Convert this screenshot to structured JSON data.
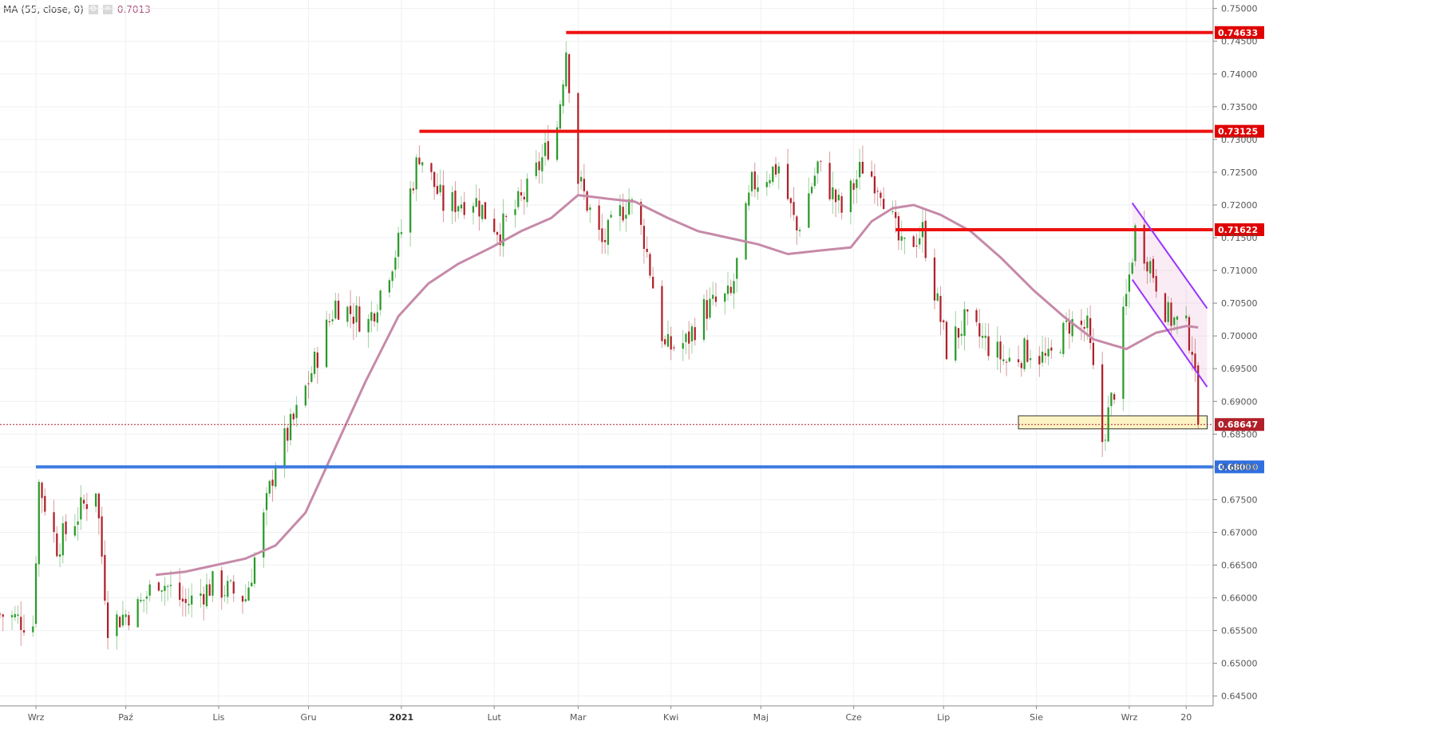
{
  "legend": {
    "indicator": "MA (55, close, 0)",
    "settings_icon": "gear-icon",
    "close_icon": "close-icon",
    "value": "0.7013"
  },
  "colors": {
    "up": "#2a9a2a",
    "down": "#b0202a",
    "ma": "#c68aa8",
    "resistance": "#ee1111",
    "support": "#3c7be0",
    "channel": "#9933ff",
    "zone_fill": "#fbf3c4",
    "grid": "#eef0f3",
    "price_line": "#b0202a"
  },
  "chart_data": {
    "type": "candlestick",
    "title": "",
    "xlabel": "",
    "ylabel": "",
    "ylim": [
      0.6435,
      0.7513
    ],
    "x_range": [
      "2020-08-20",
      "2021-09-29"
    ],
    "x_ticks": [
      {
        "date": "2020-09-01",
        "label": "Wrz"
      },
      {
        "date": "2020-10-01",
        "label": "Paź"
      },
      {
        "date": "2020-11-01",
        "label": "Lis"
      },
      {
        "date": "2020-12-01",
        "label": "Gru"
      },
      {
        "date": "2021-01-01",
        "label": "2021",
        "bold": true
      },
      {
        "date": "2021-02-01",
        "label": "Lut"
      },
      {
        "date": "2021-03-01",
        "label": "Mar"
      },
      {
        "date": "2021-04-01",
        "label": "Kwi"
      },
      {
        "date": "2021-05-01",
        "label": "Maj"
      },
      {
        "date": "2021-06-01",
        "label": "Cze"
      },
      {
        "date": "2021-07-01",
        "label": "Lip"
      },
      {
        "date": "2021-08-01",
        "label": "Sie"
      },
      {
        "date": "2021-09-01",
        "label": "Wrz"
      },
      {
        "date": "2021-09-20",
        "label": "20"
      }
    ],
    "y_ticks": [
      "0.75000",
      "0.74500",
      "0.74000",
      "0.73500",
      "0.73000",
      "0.72500",
      "0.72000",
      "0.71500",
      "0.71000",
      "0.70500",
      "0.70000",
      "0.69500",
      "0.69000",
      "0.68500",
      "0.68000",
      "0.67500",
      "0.67000",
      "0.66500",
      "0.66000",
      "0.65500",
      "0.65000",
      "0.64500"
    ],
    "price_anchors": [
      [
        "2020-08-20",
        0.6575
      ],
      [
        "2020-08-31",
        0.656
      ],
      [
        "2020-09-02",
        0.6775
      ],
      [
        "2020-09-08",
        0.668
      ],
      [
        "2020-09-14",
        0.672
      ],
      [
        "2020-09-21",
        0.677
      ],
      [
        "2020-09-25",
        0.656
      ],
      [
        "2020-10-05",
        0.6585
      ],
      [
        "2020-10-12",
        0.663
      ],
      [
        "2020-10-21",
        0.659
      ],
      [
        "2020-10-30",
        0.662
      ],
      [
        "2020-11-10",
        0.66
      ],
      [
        "2020-11-16",
        0.672
      ],
      [
        "2020-11-20",
        0.681
      ],
      [
        "2020-11-27",
        0.688
      ],
      [
        "2020-12-10",
        0.705
      ],
      [
        "2020-12-21",
        0.702
      ],
      [
        "2020-12-31",
        0.714
      ],
      [
        "2021-01-07",
        0.728
      ],
      [
        "2021-01-15",
        0.72
      ],
      [
        "2021-01-25",
        0.721
      ],
      [
        "2021-02-03",
        0.716
      ],
      [
        "2021-02-12",
        0.722
      ],
      [
        "2021-02-22",
        0.732
      ],
      [
        "2021-02-25",
        0.744
      ],
      [
        "2021-03-01",
        0.724
      ],
      [
        "2021-03-09",
        0.714
      ],
      [
        "2021-03-18",
        0.721
      ],
      [
        "2021-03-23",
        0.715
      ],
      [
        "2021-03-30",
        0.698
      ],
      [
        "2021-04-06",
        0.699
      ],
      [
        "2021-04-12",
        0.704
      ],
      [
        "2021-04-21",
        0.706
      ],
      [
        "2021-04-28",
        0.723
      ],
      [
        "2021-05-07",
        0.726
      ],
      [
        "2021-05-13",
        0.716
      ],
      [
        "2021-05-20",
        0.726
      ],
      [
        "2021-05-28",
        0.719
      ],
      [
        "2021-06-04",
        0.726
      ],
      [
        "2021-06-10",
        0.723
      ],
      [
        "2021-06-17",
        0.713
      ],
      [
        "2021-06-24",
        0.716
      ],
      [
        "2021-07-02",
        0.698
      ],
      [
        "2021-07-08",
        0.702
      ],
      [
        "2021-07-15",
        0.699
      ],
      [
        "2021-07-22",
        0.696
      ],
      [
        "2021-07-30",
        0.698
      ],
      [
        "2021-08-05",
        0.696
      ],
      [
        "2021-08-12",
        0.702
      ],
      [
        "2021-08-18",
        0.701
      ],
      [
        "2021-08-23",
        0.684
      ],
      [
        "2021-08-27",
        0.692
      ],
      [
        "2021-09-03",
        0.716
      ],
      [
        "2021-09-08",
        0.711
      ],
      [
        "2021-09-14",
        0.703
      ],
      [
        "2021-09-20",
        0.701
      ],
      [
        "2021-09-22",
        0.6985
      ],
      [
        "2021-09-24",
        0.6865
      ]
    ],
    "ma_55": [
      [
        "2020-10-11",
        0.6635
      ],
      [
        "2020-10-21",
        0.664
      ],
      [
        "2020-10-31",
        0.665
      ],
      [
        "2020-11-10",
        0.666
      ],
      [
        "2020-11-20",
        0.668
      ],
      [
        "2020-11-30",
        0.673
      ],
      [
        "2020-12-10",
        0.683
      ],
      [
        "2020-12-20",
        0.693
      ],
      [
        "2020-12-31",
        0.703
      ],
      [
        "2021-01-10",
        0.708
      ],
      [
        "2021-01-20",
        0.711
      ],
      [
        "2021-01-31",
        0.7135
      ],
      [
        "2021-02-10",
        0.716
      ],
      [
        "2021-02-20",
        0.718
      ],
      [
        "2021-03-01",
        0.7215
      ],
      [
        "2021-03-10",
        0.721
      ],
      [
        "2021-03-20",
        0.7205
      ],
      [
        "2021-03-31",
        0.718
      ],
      [
        "2021-04-10",
        0.716
      ],
      [
        "2021-04-20",
        0.715
      ],
      [
        "2021-04-30",
        0.714
      ],
      [
        "2021-05-10",
        0.7125
      ],
      [
        "2021-05-20",
        0.713
      ],
      [
        "2021-05-31",
        0.7135
      ],
      [
        "2021-06-07",
        0.7175
      ],
      [
        "2021-06-14",
        0.7195
      ],
      [
        "2021-06-21",
        0.72
      ],
      [
        "2021-06-30",
        0.7185
      ],
      [
        "2021-07-10",
        0.716
      ],
      [
        "2021-07-20",
        0.712
      ],
      [
        "2021-07-31",
        0.707
      ],
      [
        "2021-08-10",
        0.703
      ],
      [
        "2021-08-20",
        0.6995
      ],
      [
        "2021-08-31",
        0.698
      ],
      [
        "2021-09-10",
        0.7005
      ],
      [
        "2021-09-20",
        0.7015
      ],
      [
        "2021-09-24",
        0.7013
      ]
    ],
    "resistance_levels": [
      {
        "price": 0.74633,
        "label": "0.74633",
        "from": "2021-02-25"
      },
      {
        "price": 0.73125,
        "label": "0.73125",
        "from": "2021-01-07"
      },
      {
        "price": 0.71622,
        "label": "0.71622",
        "from": "2021-06-15"
      }
    ],
    "support_level": {
      "price": 0.68,
      "label": "0.68000",
      "from": "2020-09-01"
    },
    "current_price": {
      "price": 0.68647,
      "label": "0.68647"
    },
    "support_zone": {
      "from": "2021-07-26",
      "to": "2021-09-27",
      "top": 0.6878,
      "bottom": 0.6858
    },
    "channel": {
      "upper": [
        [
          "2021-09-02",
          0.7203
        ],
        [
          "2021-09-27",
          0.7042
        ]
      ],
      "lower": [
        [
          "2021-09-02",
          0.7086
        ],
        [
          "2021-09-27",
          0.6922
        ]
      ]
    }
  }
}
